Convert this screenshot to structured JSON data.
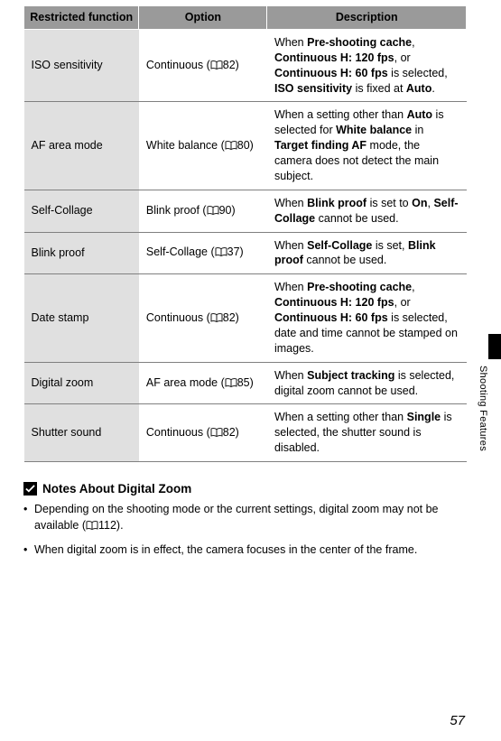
{
  "table": {
    "headers": [
      "Restricted function",
      "Option",
      "Description"
    ],
    "rows": [
      {
        "fn": "ISO sensitivity",
        "opt_pre": "Continuous (",
        "opt_ref": "82",
        "opt_post": ")",
        "desc": "When <b>Pre-shooting cache</b>, <b>Continuous H: 120 fps</b>, or <b>Continuous H: 60 fps</b> is selected, <b>ISO sensitivity</b> is fixed at <b>Auto</b>."
      },
      {
        "fn": "AF area mode",
        "opt_pre": "White balance (",
        "opt_ref": "80",
        "opt_post": ")",
        "desc": "When a setting other than <b>Auto</b> is selected for <b>White balance</b> in <b>Target finding AF</b> mode, the camera does not detect the main subject."
      },
      {
        "fn": "Self-Collage",
        "opt_pre": "Blink proof (",
        "opt_ref": "90",
        "opt_post": ")",
        "desc": "When <b>Blink proof</b> is set to <b>On</b>, <b>Self-Collage</b> cannot be used."
      },
      {
        "fn": "Blink proof",
        "opt_pre": "Self-Collage (",
        "opt_ref": "37",
        "opt_post": ")",
        "desc": "When <b>Self-Collage</b> is set, <b>Blink proof</b> cannot be used."
      },
      {
        "fn": "Date stamp",
        "opt_pre": "Continuous (",
        "opt_ref": "82",
        "opt_post": ")",
        "desc": "When <b>Pre-shooting cache</b>, <b>Continuous H: 120 fps</b>, or <b>Continuous H: 60 fps</b> is selected, date and time cannot be stamped on images."
      },
      {
        "fn": "Digital zoom",
        "opt_pre": "AF area mode (",
        "opt_ref": "85",
        "opt_post": ")",
        "desc": "When <b>Subject tracking</b> is selected, digital zoom cannot be used."
      },
      {
        "fn": "Shutter sound",
        "opt_pre": "Continuous (",
        "opt_ref": "82",
        "opt_post": ")",
        "desc": "When a setting other than <b>Single</b> is selected, the shutter sound is disabled."
      }
    ]
  },
  "notes": {
    "heading": "Notes About Digital Zoom",
    "items": [
      {
        "pre": "Depending on the shooting mode or the current settings, digital zoom may not be available (",
        "ref": "112",
        "post": ")."
      },
      {
        "pre": "When digital zoom is in effect, the camera focuses in the center of the frame.",
        "ref": "",
        "post": ""
      }
    ]
  },
  "side_text": "Shooting Features",
  "page_number": "57"
}
